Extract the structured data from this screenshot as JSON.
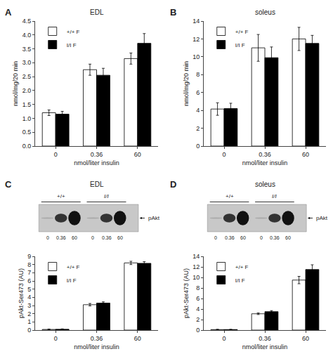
{
  "chart_data": [
    {
      "type": "bar",
      "title": "EDL",
      "annotations": [
        "A"
      ],
      "xlabel": "nmol/liter insulin",
      "ylabel": "nmol/mg/20 min",
      "categories": [
        "0",
        "0.36",
        "60"
      ],
      "series": [
        {
          "name": "+/+ F",
          "color": "white",
          "edge_color": "black",
          "values": [
            1.2,
            2.75,
            3.15
          ],
          "errors": [
            0.1,
            0.2,
            0.2
          ]
        },
        {
          "name": "I/I F",
          "color": "black",
          "edge_color": "black",
          "values": [
            1.15,
            2.55,
            3.7
          ],
          "errors": [
            0.1,
            0.25,
            0.35
          ]
        }
      ],
      "ylim": [
        0,
        4.5
      ],
      "yticks": [
        {
          "value": 0,
          "label": "0.0"
        },
        0.5,
        {
          "value": 1,
          "label": "1.0"
        },
        1.5,
        {
          "value": 2,
          "label": "2.0"
        },
        2.5,
        {
          "value": 3,
          "label": "3.0"
        },
        3.5,
        {
          "value": 4,
          "label": "4.0"
        },
        4.5
      ],
      "grid": false,
      "legend": "upper left"
    },
    {
      "type": "bar",
      "title": "soleus",
      "annotations": [
        "B"
      ],
      "xlabel": "nmol/liter insulin",
      "ylabel": "nmol/mg/20 min",
      "categories": [
        "0",
        "0.36",
        "60"
      ],
      "series": [
        {
          "name": "+/+ F",
          "color": "white",
          "edge_color": "black",
          "values": [
            4.15,
            11.0,
            12.0
          ],
          "errors": [
            0.7,
            1.5,
            1.3
          ]
        },
        {
          "name": "I/I F",
          "color": "black",
          "edge_color": "black",
          "values": [
            4.2,
            9.9,
            11.5
          ],
          "errors": [
            0.6,
            1.2,
            0.9
          ]
        }
      ],
      "ylim": [
        0,
        14
      ],
      "yticks": [
        0,
        2,
        4,
        6,
        8,
        10,
        12,
        14
      ],
      "grid": false,
      "legend": "upper left"
    },
    {
      "type": "bar",
      "title": "EDL",
      "annotations": [
        "C"
      ],
      "xlabel": "nmol/liter insulin",
      "ylabel": "pAkt-Ser473 (AU)",
      "categories": [
        "0",
        "0.36",
        "60"
      ],
      "series": [
        {
          "name": "+/+ F",
          "color": "white",
          "edge_color": "black",
          "values": [
            0.08,
            3.1,
            8.2
          ],
          "errors": [
            0.05,
            0.15,
            0.2
          ]
        },
        {
          "name": "I/I F",
          "color": "black",
          "edge_color": "black",
          "values": [
            0.1,
            3.3,
            8.15
          ],
          "errors": [
            0.05,
            0.15,
            0.2
          ]
        }
      ],
      "ylim": [
        0,
        9
      ],
      "yticks": [
        0,
        1,
        2,
        3,
        4,
        5,
        6,
        7,
        8,
        9
      ],
      "grid": false,
      "legend": "upper left",
      "blot": {
        "label": "pAkt",
        "groups": [
          "+/+",
          "I/I"
        ],
        "doses": [
          "0",
          "0.36",
          "60",
          "0",
          "0.36",
          "60"
        ]
      }
    },
    {
      "type": "bar",
      "title": "soleus",
      "annotations": [
        "D"
      ],
      "xlabel": "nmol/liter insulin",
      "ylabel": "pAkt-Ser473 (AU)",
      "categories": [
        "0",
        "0.36",
        "60"
      ],
      "series": [
        {
          "name": "+/+ F",
          "color": "white",
          "edge_color": "black",
          "values": [
            0.1,
            3.1,
            9.5
          ],
          "errors": [
            0.05,
            0.15,
            0.7
          ]
        },
        {
          "name": "I/I F",
          "color": "black",
          "edge_color": "black",
          "values": [
            0.1,
            3.5,
            11.5
          ],
          "errors": [
            0.05,
            0.2,
            0.9
          ]
        }
      ],
      "ylim": [
        0,
        14
      ],
      "yticks": [
        0,
        2,
        4,
        6,
        8,
        10,
        12,
        14
      ],
      "grid": false,
      "legend": "upper left",
      "blot": {
        "label": "pAkt",
        "groups": [
          "+/+",
          "I/I"
        ],
        "doses": [
          "0",
          "0.36",
          "60",
          "0",
          "0.36",
          "60"
        ]
      }
    }
  ]
}
